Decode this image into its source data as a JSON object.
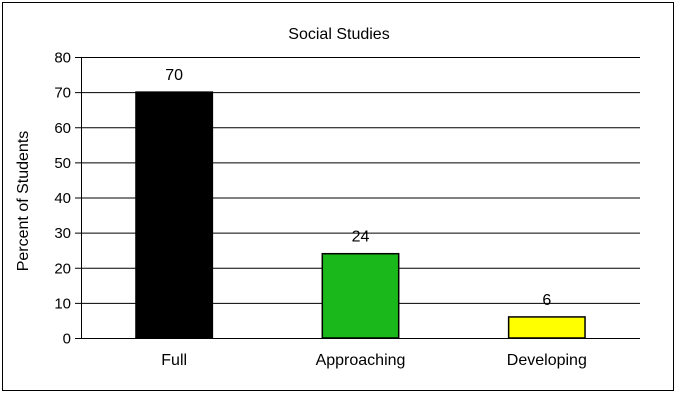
{
  "chart_data": {
    "type": "bar",
    "title": "Social Studies",
    "xlabel": "",
    "ylabel": "Percent of Students",
    "categories": [
      "Full",
      "Approaching",
      "Developing"
    ],
    "values": [
      70,
      24,
      6
    ],
    "data_labels": [
      "70",
      "24",
      "6"
    ],
    "ylim": [
      0,
      80
    ],
    "yticks": [
      0,
      10,
      20,
      30,
      40,
      50,
      60,
      70,
      80
    ],
    "ytick_labels": [
      "0",
      "10",
      "20",
      "30",
      "40",
      "50",
      "60",
      "70",
      "80"
    ],
    "grid": true,
    "legend": "none",
    "colors": [
      "#000000",
      "#1ab81a",
      "#ffff00"
    ]
  }
}
